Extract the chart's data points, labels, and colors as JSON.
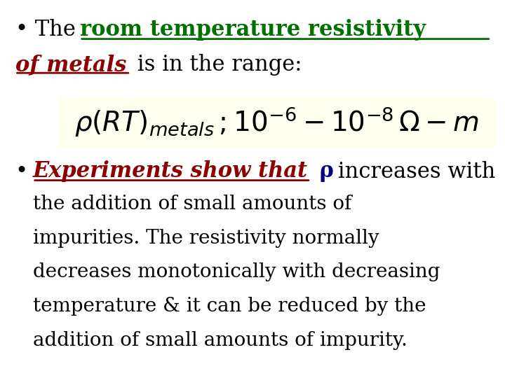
{
  "background_color": "#ffffff",
  "fig_width": 7.2,
  "fig_height": 5.4,
  "dpi": 100,
  "bullet1_black": "The ",
  "bullet1_green": "room temperature resistivity",
  "bullet1_red": "of metals",
  "bullet1_black2": " is in the range:",
  "formula_bg": "#ffffee",
  "bullet2_red_italic": "Experiments show that",
  "bullet2_blue_rho": " ρ",
  "bullet2_black_rest1": " increases with",
  "bullet2_black_line2": "the addition of small amounts of",
  "bullet2_black_line3": "impurities. The resistivity normally",
  "bullet2_black_line4": "decreases monotonically with decreasing",
  "bullet2_black_line5": "temperature & it can be reduced by the",
  "bullet2_black_line6": "addition of small amounts of impurity.",
  "green_color": "#007000",
  "dark_red_color": "#8B0000",
  "blue_color": "#00008B",
  "black_color": "#000000",
  "font_size_large": 22,
  "font_size_body": 20,
  "font_size_formula": 28
}
